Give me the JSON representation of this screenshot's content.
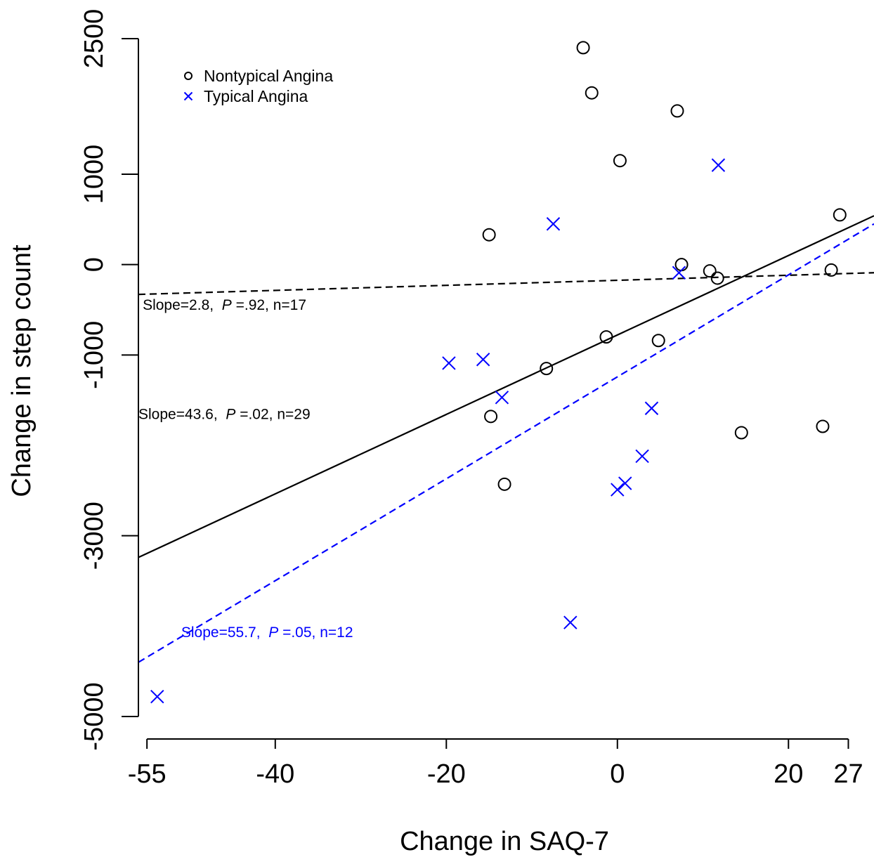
{
  "chart_data": {
    "type": "scatter",
    "xlabel": "Change in SAQ-7",
    "ylabel": "Change in step count",
    "xlim": [
      -56,
      30
    ],
    "ylim": [
      -5000,
      2500
    ],
    "x_ticks": [
      -55,
      -40,
      -20,
      0,
      20,
      27
    ],
    "y_ticks": [
      2500,
      1000,
      0,
      -1000,
      -3000,
      -5000
    ],
    "legend": {
      "position": "top-left",
      "entries": [
        {
          "name": "Nontypical Angina",
          "marker": "circle",
          "color": "#000000"
        },
        {
          "name": "Typical Angina",
          "marker": "cross",
          "color": "#0000ff"
        }
      ]
    },
    "series": [
      {
        "name": "Nontypical Angina",
        "marker": "circle",
        "color": "#000000",
        "points": [
          {
            "x": -4,
            "y": 2400
          },
          {
            "x": -3,
            "y": 1900
          },
          {
            "x": 7,
            "y": 1700
          },
          {
            "x": 0.3,
            "y": 1150
          },
          {
            "x": -15,
            "y": 330
          },
          {
            "x": 26,
            "y": 550
          },
          {
            "x": 7.5,
            "y": 0
          },
          {
            "x": 10.8,
            "y": -70
          },
          {
            "x": 11.7,
            "y": -150
          },
          {
            "x": 25,
            "y": -60
          },
          {
            "x": -1.3,
            "y": -800
          },
          {
            "x": 4.8,
            "y": -840
          },
          {
            "x": -8.3,
            "y": -1150
          },
          {
            "x": -14.8,
            "y": -1680
          },
          {
            "x": -13.2,
            "y": -2430
          },
          {
            "x": 14.5,
            "y": -1860
          },
          {
            "x": 24,
            "y": -1790
          }
        ]
      },
      {
        "name": "Typical Angina",
        "marker": "cross",
        "color": "#0000ff",
        "points": [
          {
            "x": 11.8,
            "y": 1100
          },
          {
            "x": -7.5,
            "y": 450
          },
          {
            "x": 7.2,
            "y": -90
          },
          {
            "x": -19.7,
            "y": -1090
          },
          {
            "x": -15.7,
            "y": -1050
          },
          {
            "x": -13.5,
            "y": -1470
          },
          {
            "x": 4,
            "y": -1590
          },
          {
            "x": 2.9,
            "y": -2120
          },
          {
            "x": 0.9,
            "y": -2420
          },
          {
            "x": 0,
            "y": -2490
          },
          {
            "x": -5.5,
            "y": -3960
          },
          {
            "x": -53.8,
            "y": -4780
          }
        ]
      }
    ],
    "fit_lines": [
      {
        "group": "Nontypical Angina",
        "style": "dashed",
        "color": "#000000",
        "x": [
          -56,
          30
        ],
        "y": [
          -330,
          -90
        ]
      },
      {
        "group": "All",
        "style": "solid",
        "color": "#000000",
        "x": [
          -56,
          30
        ],
        "y": [
          -3240,
          540
        ]
      },
      {
        "group": "Typical Angina",
        "style": "dashed",
        "color": "#0000ff",
        "x": [
          -56,
          30
        ],
        "y": [
          -4400,
          450
        ]
      }
    ],
    "annotations": [
      {
        "id": "nontypical",
        "color": "#000000",
        "pre": "Slope=2.8,",
        "p_letter": "P",
        "post": " =.92, n=17",
        "anchor": {
          "x": -55.5,
          "y": -500
        }
      },
      {
        "id": "all",
        "color": "#000000",
        "pre": "Slope=43.6,",
        "p_letter": "P",
        "post": " =.02, n=29",
        "anchor": {
          "x": -56,
          "y": -1710
        }
      },
      {
        "id": "typical",
        "color": "#0000ff",
        "pre": "Slope=55.7,",
        "p_letter": "P",
        "post": " =.05, n=12",
        "anchor": {
          "x": -51,
          "y": -4120
        }
      }
    ]
  }
}
